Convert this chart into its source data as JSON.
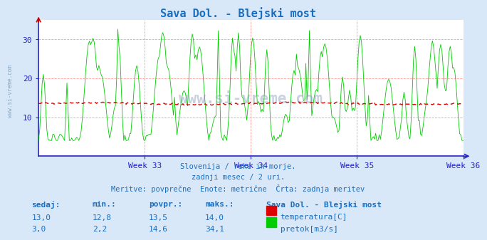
{
  "title": "Sava Dol. - Blejski most",
  "title_color": "#1a6ec0",
  "bg_color": "#d8e8f8",
  "plot_bg_color": "#ffffff",
  "grid_color": "#ff9999",
  "axis_color": "#2222cc",
  "text_color": "#1a6ec0",
  "watermark": "www.si-vreme.com",
  "xlabel_weeks": [
    "Week 33",
    "Week 34",
    "Week 35",
    "Week 36"
  ],
  "ylim": [
    0,
    35
  ],
  "yticks": [
    10,
    20,
    30
  ],
  "temp_color": "#dd0000",
  "flow_color": "#00cc00",
  "temp_avg": 13.5,
  "temp_min": 12.8,
  "temp_max": 14.0,
  "temp_now": 13.0,
  "flow_avg": 14.6,
  "flow_min": 2.2,
  "flow_max": 34.1,
  "flow_now": 3.0,
  "n_points": 360,
  "subtitle1": "Slovenija / reke in morje.",
  "subtitle2": "zadnji mesec / 2 uri.",
  "subtitle3": "Meritve: povprečne  Enote: metrične  Črta: zadnja meritev",
  "legend_title": "Sava Dol. - Blejski most",
  "legend_temp": "temperatura[C]",
  "legend_flow": "pretok[m3/s]",
  "col_sedaj": "sedaj:",
  "col_min": "min.:",
  "col_povpr": "povpr.:",
  "col_maks": "maks.:"
}
